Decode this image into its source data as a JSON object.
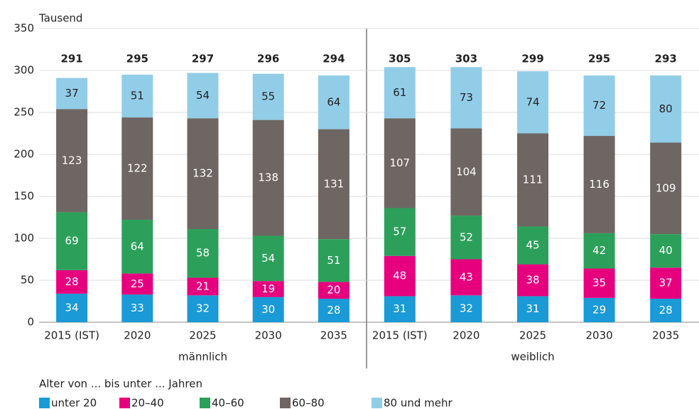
{
  "chart_data": {
    "type": "stacked-bar",
    "y_unit": "Tausend",
    "legend_title": "Alter von ... bis unter ... Jahren",
    "ylim": [
      0,
      350
    ],
    "yticks": [
      0,
      50,
      100,
      150,
      200,
      250,
      300,
      350
    ],
    "grid": true,
    "panels": [
      {
        "label": "männlich",
        "categories": [
          "2015 (IST)",
          "2020",
          "2025",
          "2030",
          "2035"
        ],
        "totals": [
          291,
          295,
          297,
          296,
          294
        ]
      },
      {
        "label": "weiblich",
        "categories": [
          "2015 (IST)",
          "2020",
          "2025",
          "2030",
          "2035"
        ],
        "totals": [
          305,
          303,
          299,
          295,
          293
        ]
      }
    ],
    "series": [
      {
        "name": "unter 20",
        "color": "#1a9ad6",
        "label_color": "#ffffff",
        "values": [
          [
            34,
            33,
            32,
            30,
            28
          ],
          [
            31,
            32,
            31,
            29,
            28
          ]
        ]
      },
      {
        "name": "20–40",
        "color": "#e6007e",
        "label_color": "#ffffff",
        "values": [
          [
            28,
            25,
            21,
            19,
            20
          ],
          [
            48,
            43,
            38,
            35,
            37
          ]
        ]
      },
      {
        "name": "40–60",
        "color": "#2ca05a",
        "label_color": "#ffffff",
        "values": [
          [
            69,
            64,
            58,
            54,
            51
          ],
          [
            57,
            52,
            45,
            42,
            40
          ]
        ]
      },
      {
        "name": "60–80",
        "color": "#6e6662",
        "label_color": "#ffffff",
        "values": [
          [
            123,
            122,
            132,
            138,
            131
          ],
          [
            107,
            104,
            111,
            116,
            109
          ]
        ]
      },
      {
        "name": "80 und mehr",
        "color": "#92cde8",
        "label_color": "#222222",
        "values": [
          [
            37,
            51,
            54,
            55,
            64
          ],
          [
            61,
            73,
            74,
            72,
            80
          ]
        ]
      }
    ]
  }
}
